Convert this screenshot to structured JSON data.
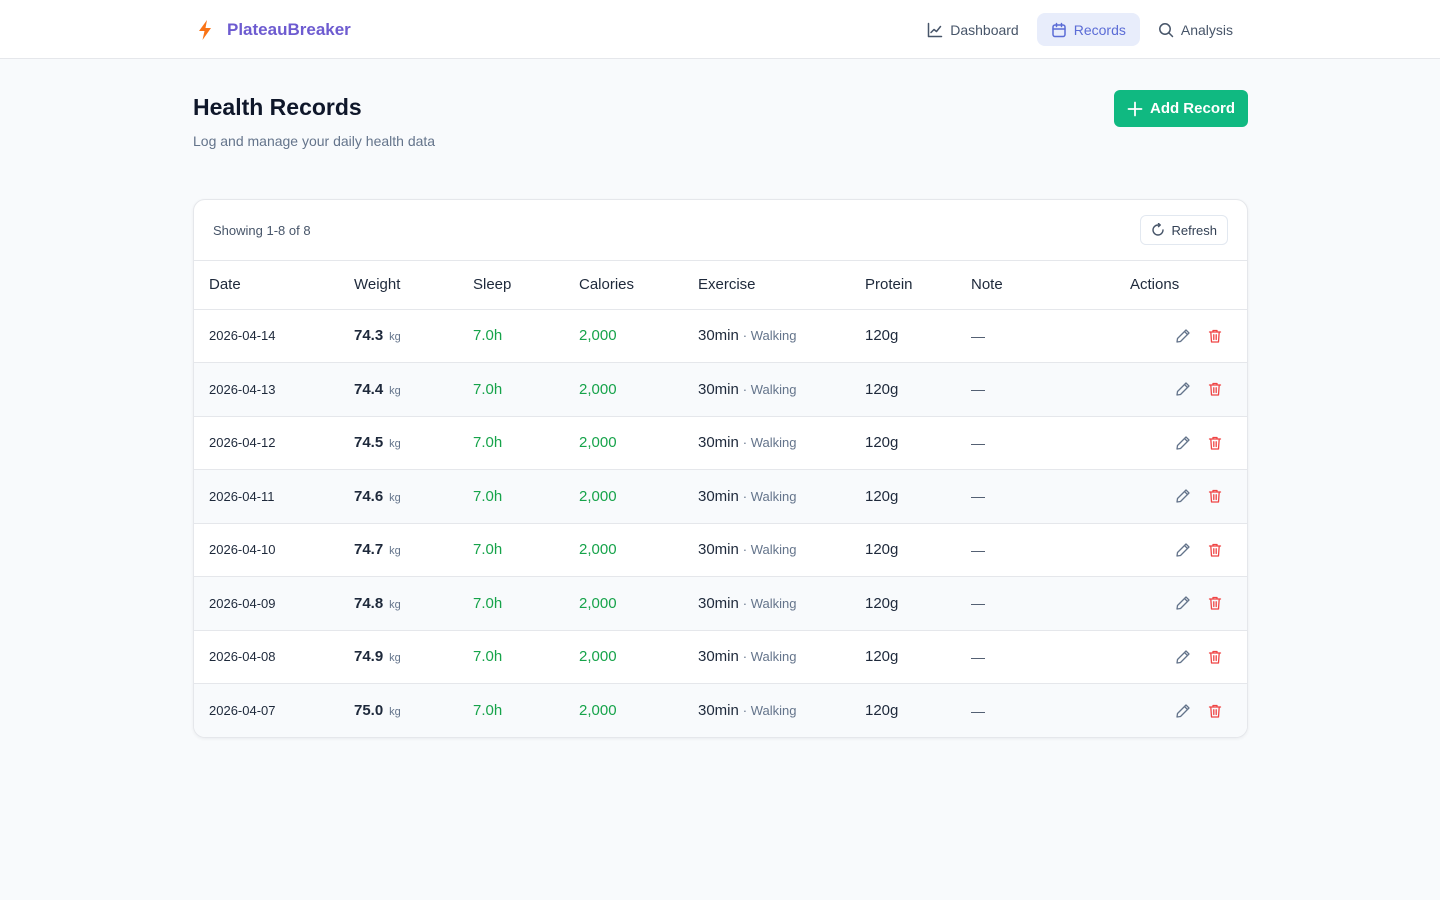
{
  "brand": {
    "name": "PlateauBreaker",
    "accent": "#6d5bd0",
    "icon_color": "#f97316"
  },
  "nav": {
    "items": [
      {
        "label": "Dashboard",
        "icon": "chart-line-icon",
        "active": false
      },
      {
        "label": "Records",
        "icon": "calendar-icon",
        "active": true
      },
      {
        "label": "Analysis",
        "icon": "search-icon",
        "active": false
      }
    ]
  },
  "header": {
    "title": "Health Records",
    "subtitle": "Log and manage your daily health data",
    "add_label": "Add Record"
  },
  "toolbar": {
    "showing": "Showing 1-8 of 8",
    "refresh_label": "Refresh"
  },
  "table": {
    "columns": [
      "Date",
      "Weight",
      "Sleep",
      "Calories",
      "Exercise",
      "Protein",
      "Note",
      "Actions"
    ],
    "rows": [
      {
        "date": "2026-04-14",
        "weight": "74.3",
        "unit": "kg",
        "sleep": "7.0h",
        "calories": "2,000",
        "exercise_min": "30min",
        "exercise_type": "· Walking",
        "protein": "120g",
        "note": "—"
      },
      {
        "date": "2026-04-13",
        "weight": "74.4",
        "unit": "kg",
        "sleep": "7.0h",
        "calories": "2,000",
        "exercise_min": "30min",
        "exercise_type": "· Walking",
        "protein": "120g",
        "note": "—"
      },
      {
        "date": "2026-04-12",
        "weight": "74.5",
        "unit": "kg",
        "sleep": "7.0h",
        "calories": "2,000",
        "exercise_min": "30min",
        "exercise_type": "· Walking",
        "protein": "120g",
        "note": "—"
      },
      {
        "date": "2026-04-11",
        "weight": "74.6",
        "unit": "kg",
        "sleep": "7.0h",
        "calories": "2,000",
        "exercise_min": "30min",
        "exercise_type": "· Walking",
        "protein": "120g",
        "note": "—"
      },
      {
        "date": "2026-04-10",
        "weight": "74.7",
        "unit": "kg",
        "sleep": "7.0h",
        "calories": "2,000",
        "exercise_min": "30min",
        "exercise_type": "· Walking",
        "protein": "120g",
        "note": "—"
      },
      {
        "date": "2026-04-09",
        "weight": "74.8",
        "unit": "kg",
        "sleep": "7.0h",
        "calories": "2,000",
        "exercise_min": "30min",
        "exercise_type": "· Walking",
        "protein": "120g",
        "note": "—"
      },
      {
        "date": "2026-04-08",
        "weight": "74.9",
        "unit": "kg",
        "sleep": "7.0h",
        "calories": "2,000",
        "exercise_min": "30min",
        "exercise_type": "· Walking",
        "protein": "120g",
        "note": "—"
      },
      {
        "date": "2026-04-07",
        "weight": "75.0",
        "unit": "kg",
        "sleep": "7.0h",
        "calories": "2,000",
        "exercise_min": "30min",
        "exercise_type": "· Walking",
        "protein": "120g",
        "note": "—"
      }
    ]
  },
  "colors": {
    "primary_button": "#10b981",
    "good_value": "#16a34a",
    "delete": "#ef4444"
  }
}
